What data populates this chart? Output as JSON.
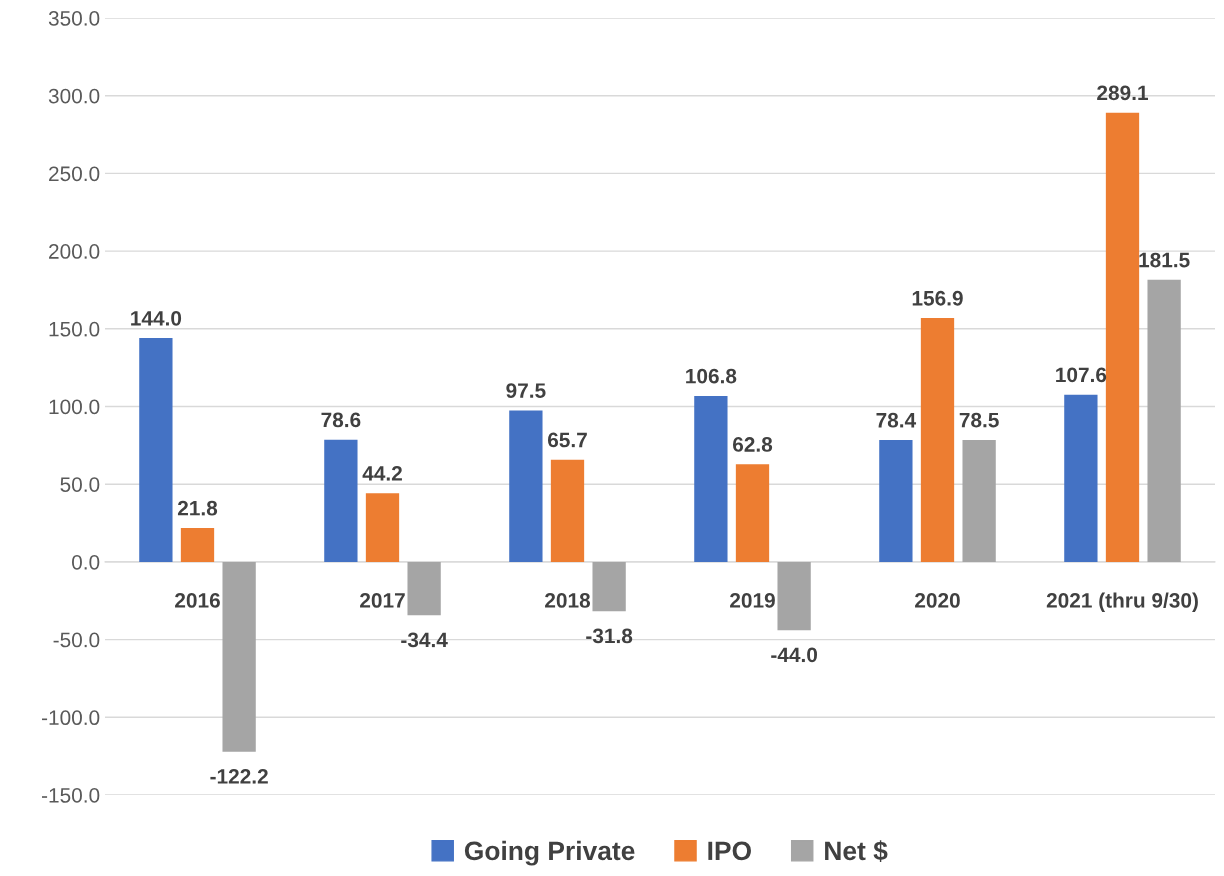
{
  "chart_data": {
    "type": "bar",
    "categories": [
      "2016",
      "2017",
      "2018",
      "2019",
      "2020",
      "2021 (thru 9/30)"
    ],
    "series": [
      {
        "name": "Going Private",
        "color": "#4472c4",
        "values": [
          144.0,
          78.6,
          97.5,
          106.8,
          78.4,
          107.6
        ],
        "value_labels": [
          "144.0",
          "78.6",
          "97.5",
          "106.8",
          "78.4",
          "107.6"
        ]
      },
      {
        "name": "IPO",
        "color": "#ed7d31",
        "values": [
          21.8,
          44.2,
          65.7,
          62.8,
          156.9,
          289.1
        ],
        "value_labels": [
          "21.8",
          "44.2",
          "65.7",
          "62.8",
          "156.9",
          "289.1"
        ]
      },
      {
        "name": "Net $",
        "color": "#a5a5a5",
        "values": [
          -122.2,
          -34.4,
          -31.8,
          -44.0,
          78.5,
          181.5
        ],
        "value_labels": [
          "-122.2",
          "-34.4",
          "-31.8",
          "-44.0",
          "78.5",
          "181.5"
        ]
      }
    ],
    "ylim": [
      -150,
      350
    ],
    "yticks": [
      {
        "value": -150,
        "label": "-150.0"
      },
      {
        "value": -100,
        "label": "-100.0"
      },
      {
        "value": -50,
        "label": "-50.0"
      },
      {
        "value": 0,
        "label": "0.0"
      },
      {
        "value": 50,
        "label": "50.0"
      },
      {
        "value": 100,
        "label": "100.0"
      },
      {
        "value": 150,
        "label": "150.0"
      },
      {
        "value": 200,
        "label": "200.0"
      },
      {
        "value": 250,
        "label": "250.0"
      },
      {
        "value": 300,
        "label": "300.0"
      },
      {
        "value": 350,
        "label": "350.0"
      }
    ],
    "grid": "y",
    "legend": "bottom"
  }
}
